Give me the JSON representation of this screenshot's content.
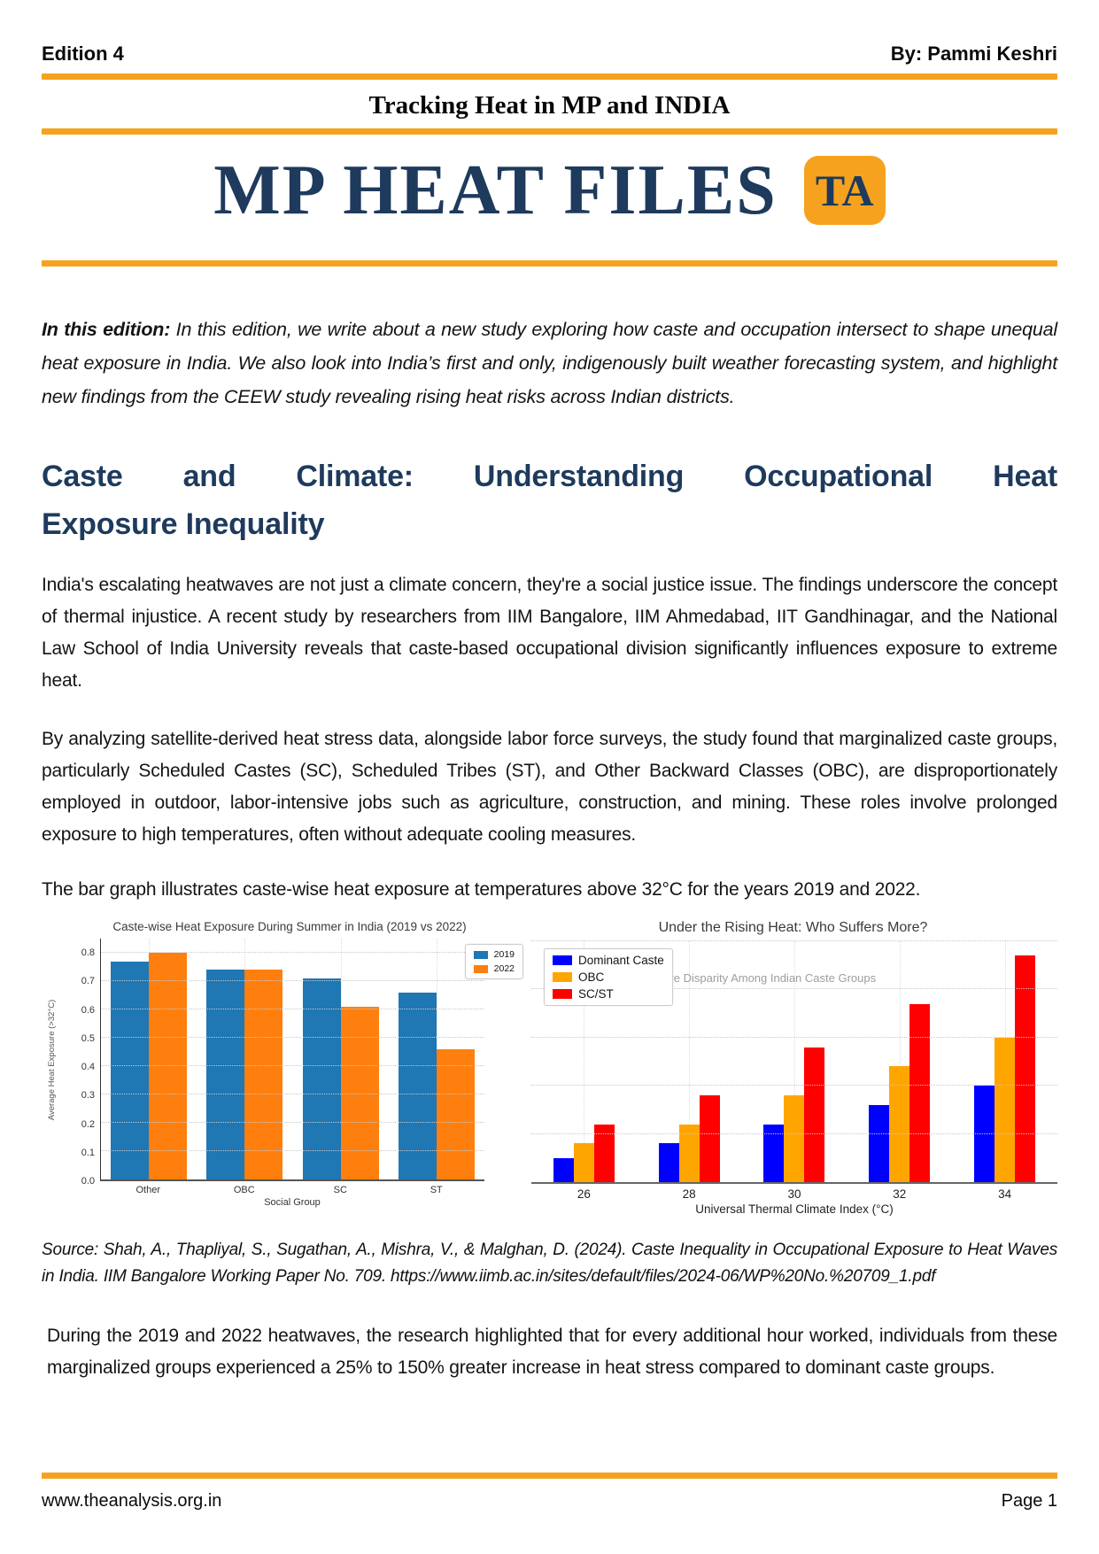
{
  "page": {
    "edition": "Edition 4",
    "byline": "By: Pammi Keshri",
    "tagline": "Tracking Heat in MP and INDIA",
    "masthead": "MP HEAT FILES",
    "logo_text": "TA",
    "footer_url": "www.theanalysis.org.in",
    "footer_page": "Page 1",
    "colors": {
      "accent": "#F6A21E",
      "navy": "#1E3A5C"
    }
  },
  "intro": {
    "lead": "In this edition:",
    "text": "In this edition, we write about a new study exploring how caste and occupation intersect to shape unequal heat exposure in India. We also look into India’s first and only, indigenously built weather forecasting system, and highlight new findings from the CEEW study revealing rising heat risks across Indian districts."
  },
  "section": {
    "heading_lines": [
      "Caste and Climate: Understanding Occupational Heat",
      "Exposure Inequality"
    ],
    "para1": "India's escalating heatwaves are not just a climate concern, they're a social justice issue. The findings underscore the concept of thermal injustice. A recent study by researchers from IIM Bangalore, IIM Ahmedabad, IIT Gandhinagar, and the National Law School of India University reveals that caste-based occupational division significantly influences exposure to extreme heat.",
    "para2": "By analyzing satellite-derived heat stress data, alongside labor force surveys, the study found that marginalized caste groups, particularly Scheduled Castes (SC), Scheduled Tribes (ST), and Other Backward Classes (OBC), are disproportionately employed in outdoor, labor-intensive jobs such as agriculture, construction, and mining. These roles involve prolonged exposure to high temperatures, often without adequate cooling measures.",
    "para3": "The bar graph illustrates caste-wise heat exposure at temperatures above 32°C for the years 2019 and 2022.",
    "source": "Source: Shah, A., Thapliyal, S., Sugathan, A., Mishra, V., & Malghan, D. (2024). Caste Inequality in Occupational Exposure to Heat Waves in India. IIM Bangalore Working Paper No. 709. https://www.iimb.ac.in/sites/default/files/2024-06/WP%20No.%20709_1.pdf",
    "para4": "During the 2019 and 2022 heatwaves, the research highlighted that for every additional hour worked, individuals from these marginalized groups experienced a 25% to 150% greater increase in heat stress compared to dominant caste groups."
  },
  "chart_data": [
    {
      "type": "bar",
      "title": "Caste-wise Heat Exposure During Summer in India (2019 vs 2022)",
      "categories": [
        "Other",
        "OBC",
        "SC",
        "ST"
      ],
      "series": [
        {
          "name": "2019",
          "color": "#1f77b4",
          "values": [
            0.77,
            0.74,
            0.71,
            0.66
          ]
        },
        {
          "name": "2022",
          "color": "#ff7f0e",
          "values": [
            0.8,
            0.74,
            0.61,
            0.46
          ]
        }
      ],
      "xlabel": "Social Group",
      "ylabel": "Average Heat Exposure (>32°C)",
      "ylim": [
        0,
        0.85
      ],
      "yticks": [
        0.0,
        0.1,
        0.2,
        0.3,
        0.4,
        0.5,
        0.6,
        0.7,
        0.8
      ],
      "yticks_labeled": true,
      "grid": true,
      "legend_position": "upper-right",
      "annotation": ""
    },
    {
      "type": "bar",
      "title": "Under the Rising Heat: Who Suffers More?",
      "categories": [
        "26",
        "28",
        "30",
        "32",
        "34"
      ],
      "series": [
        {
          "name": "Dominant Caste",
          "color": "#0000ff",
          "values": [
            0.05,
            0.08,
            0.12,
            0.16,
            0.2
          ]
        },
        {
          "name": "OBC",
          "color": "#ffa500",
          "values": [
            0.08,
            0.12,
            0.18,
            0.24,
            0.3
          ]
        },
        {
          "name": "SC/ST",
          "color": "#ff0000",
          "values": [
            0.12,
            0.18,
            0.28,
            0.37,
            0.47
          ]
        }
      ],
      "xlabel": "Universal Thermal Climate Index (°C)",
      "ylabel": "",
      "ylim": [
        0,
        0.5
      ],
      "yticks": [
        0.1,
        0.2,
        0.3,
        0.4,
        0.5
      ],
      "yticks_labeled": false,
      "grid": true,
      "legend_position": "upper-left",
      "annotation": "Heat Exposure Disparity Among Indian Caste Groups"
    }
  ]
}
